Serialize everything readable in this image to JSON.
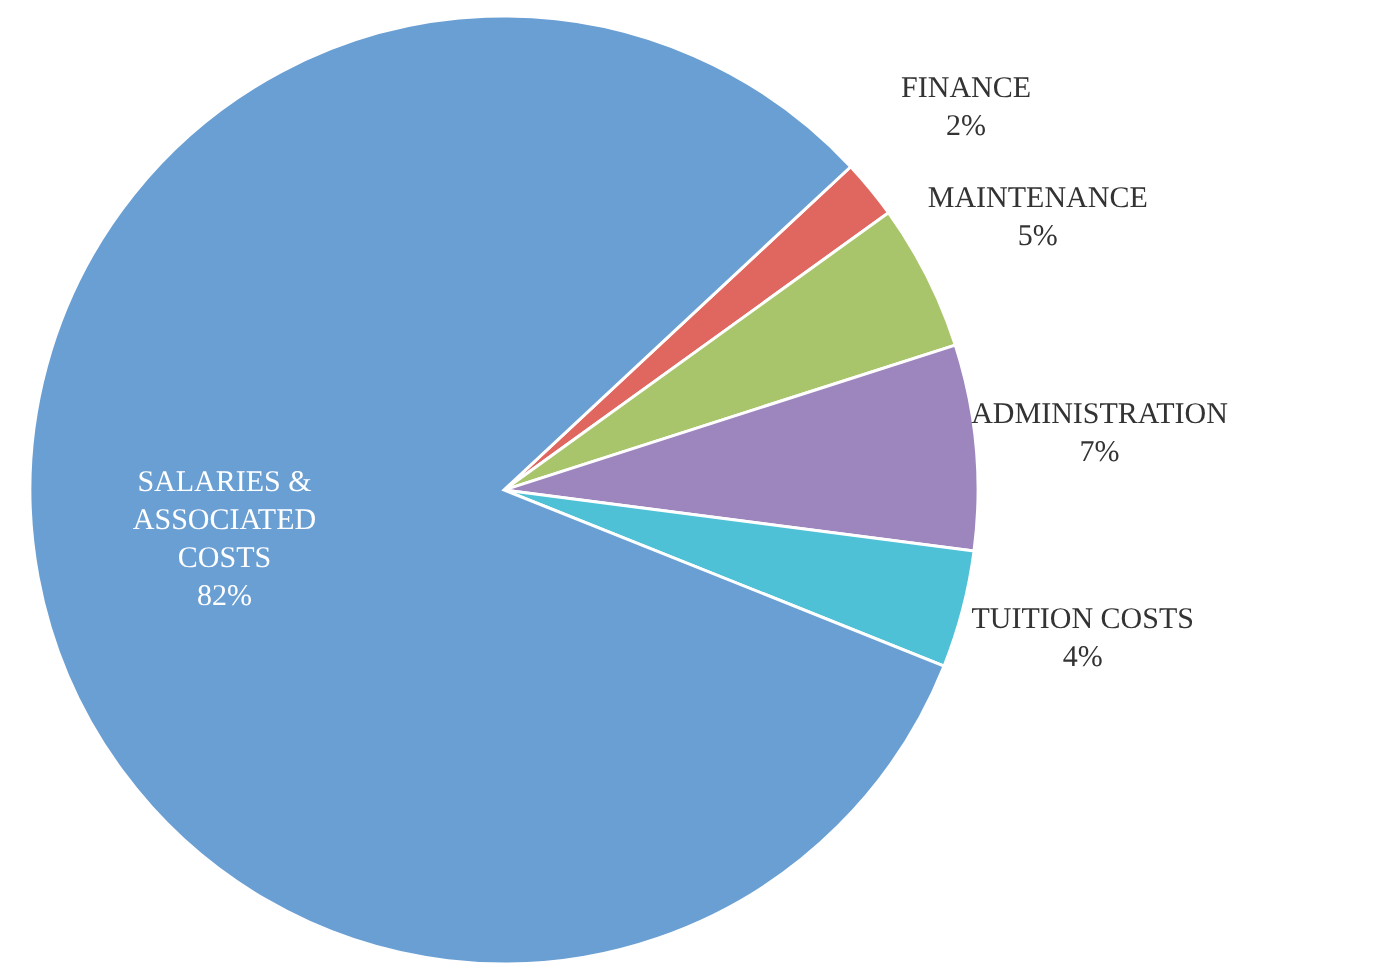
{
  "chart_data": {
    "type": "pie",
    "categories": [
      "FINANCE",
      "MAINTENANCE",
      "ADMINISTRATION",
      "TUITION COSTS",
      "SALARIES & ASSOCIATED COSTS"
    ],
    "values": [
      2,
      5,
      7,
      4,
      82
    ],
    "value_labels": [
      "2%",
      "5%",
      "7%",
      "4%",
      "82%"
    ],
    "colors": [
      "#e0675f",
      "#a9c56b",
      "#9d86bd",
      "#4fc1d6",
      "#6a9fd4"
    ]
  }
}
